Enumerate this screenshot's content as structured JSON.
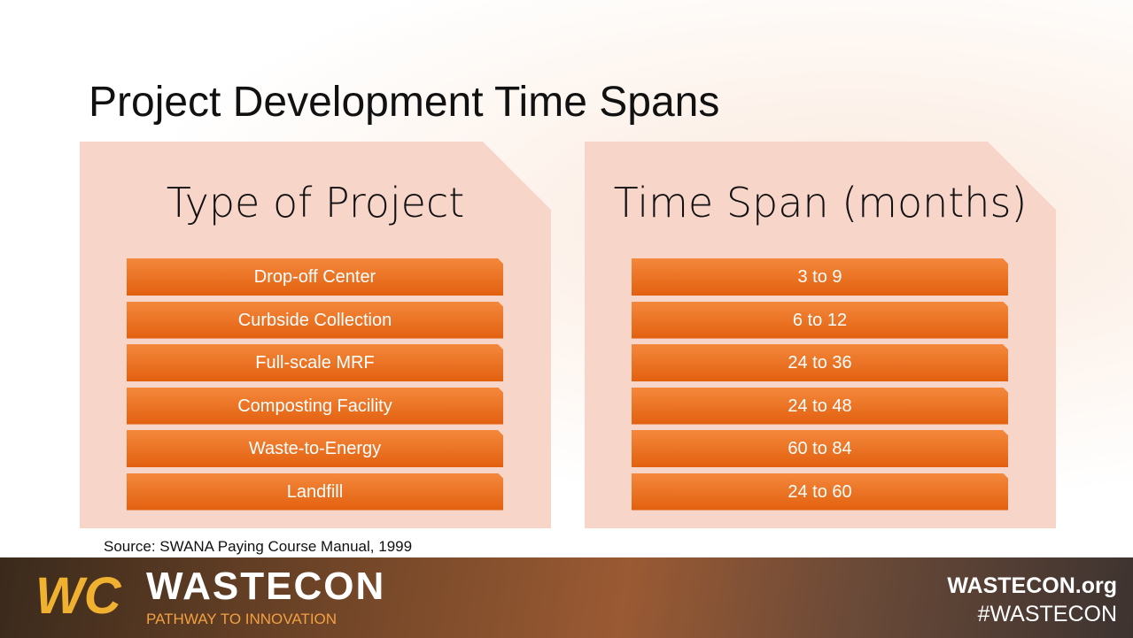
{
  "header": {
    "title": "Project Development Time Spans"
  },
  "columns": [
    {
      "heading": "Type of Project",
      "items": [
        "Drop-off Center",
        "Curbside Collection",
        "Full-scale MRF",
        "Composting Facility",
        "Waste-to-Energy",
        "Landfill"
      ]
    },
    {
      "heading": "Time Span (months)",
      "items": [
        "3 to  9",
        "6 to 12",
        "24 to 36",
        "24 to 48",
        "60 to 84",
        "24 to 60"
      ]
    }
  ],
  "source": "Source: SWANA Paying Course Manual, 1999",
  "footer": {
    "logo": "WASTECON",
    "tagline": "PATHWAY TO INNOVATION",
    "website": "WASTECON.org",
    "hashtag": "#WASTECON"
  }
}
